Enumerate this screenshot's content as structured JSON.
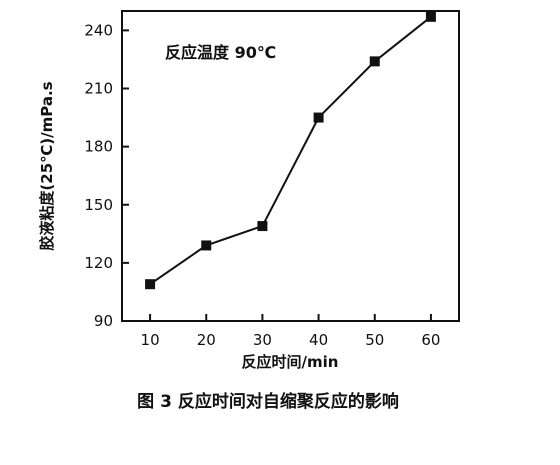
{
  "chart_data": {
    "type": "line",
    "xlabel": "反应时间/min",
    "ylabel": "胶液粘度(25℃)/mPa.s",
    "annotation": "反应温度 90℃",
    "caption": "图 3  反应时间对自缩聚反应的影响",
    "xlim": [
      5,
      65
    ],
    "ylim": [
      90,
      250
    ],
    "xticks": [
      10,
      20,
      30,
      40,
      50,
      60
    ],
    "yticks": [
      90,
      120,
      150,
      180,
      210,
      240
    ],
    "grid": false,
    "series": [
      {
        "x": [
          10,
          20,
          30,
          40,
          50,
          60
        ],
        "values": [
          109,
          129,
          139,
          195,
          224,
          247
        ],
        "marker": "square",
        "color": "#111111"
      }
    ]
  }
}
